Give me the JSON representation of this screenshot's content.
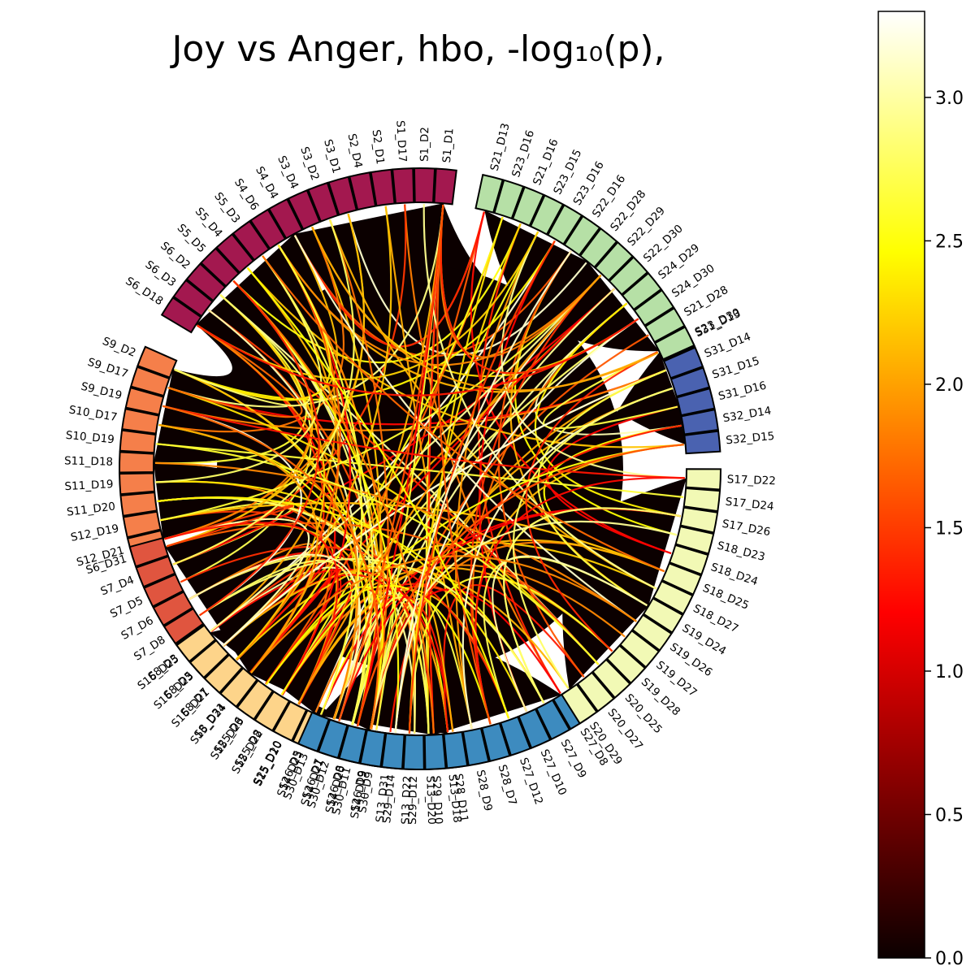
{
  "chart_data": {
    "type": "chord",
    "title": "Joy vs Anger, hbo, -log₁₀(p),",
    "colorbar": {
      "colormap": "hot",
      "range": [
        0.0,
        3.3
      ],
      "ticks": [
        "0.0",
        "0.5",
        "1.0",
        "1.5",
        "2.0",
        "2.5",
        "3.0"
      ]
    },
    "groups": [
      {
        "name": "group-1",
        "color": "#a3184f",
        "labels": [
          "S1_D1",
          "S1_D2",
          "S1_D17",
          "S2_D1",
          "S2_D4",
          "S3_D1",
          "S3_D2",
          "S3_D4",
          "S4_D4",
          "S4_D6",
          "S5_D3",
          "S5_D4",
          "S5_D5",
          "S6_D2",
          "S6_D3",
          "S6_D18"
        ]
      },
      {
        "name": "group-2",
        "color": "#f57f4a",
        "labels": [
          "S9_D2",
          "S9_D17",
          "S9_D19",
          "S10_D17",
          "S10_D19",
          "S11_D18",
          "S11_D19",
          "S11_D20",
          "S12_D19",
          "S12_D21"
        ]
      },
      {
        "name": "group-3",
        "color": "#e0553f",
        "labels": [
          "S6_D31",
          "S7_D4",
          "S7_D5",
          "S7_D6",
          "S7_D8",
          "S8_D3",
          "S8_D5",
          "S8_D7",
          "S8_D31",
          "S25_D6",
          "S25_D8",
          "S25_D10",
          "S26_D5",
          "S26_D7",
          "S26_D8",
          "S26_D9"
        ]
      },
      {
        "name": "group-4",
        "color": "#fdd48a",
        "labels": [
          "S13_D18",
          "S13_D20",
          "S13_D22",
          "S13_D31",
          "S14_D19",
          "S14_D20",
          "S14_D21",
          "S14_D23",
          "S15_D20",
          "S15_D22",
          "S15_D23",
          "S15_D24",
          "S16_D21",
          "S16_D23",
          "S16_D25"
        ]
      },
      {
        "name": "group-5",
        "color": "#3d8bbf",
        "labels": [
          "S27_D8",
          "S27_D9",
          "S27_D10",
          "S27_D12",
          "S28_D7",
          "S28_D9",
          "S28_D11",
          "S29_D10",
          "S29_D12",
          "S29_D14",
          "S30_D9",
          "S30_D11",
          "S30_D12",
          "S30_D13"
        ]
      },
      {
        "name": "group-6",
        "color": "#f2f9b5",
        "labels": [
          "S17_D22",
          "S17_D24",
          "S17_D26",
          "S18_D23",
          "S18_D24",
          "S18_D25",
          "S18_D27",
          "S19_D24",
          "S19_D26",
          "S19_D27",
          "S19_D28",
          "S20_D25",
          "S20_D27",
          "S20_D29"
        ]
      },
      {
        "name": "group-7",
        "color": "#4a62b0",
        "labels": [
          "S31_D13",
          "S31_D14",
          "S31_D15",
          "S31_D16",
          "S32_D14",
          "S32_D15"
        ]
      },
      {
        "name": "group-8",
        "color": "#b6e0a6",
        "labels": [
          "S21_D13",
          "S23_D16",
          "S21_D16",
          "S23_D15",
          "S23_D16",
          "S22_D16",
          "S22_D28",
          "S22_D29",
          "S22_D30",
          "S24_D29",
          "S24_D30",
          "S21_D28",
          "S23_D30"
        ]
      }
    ]
  }
}
